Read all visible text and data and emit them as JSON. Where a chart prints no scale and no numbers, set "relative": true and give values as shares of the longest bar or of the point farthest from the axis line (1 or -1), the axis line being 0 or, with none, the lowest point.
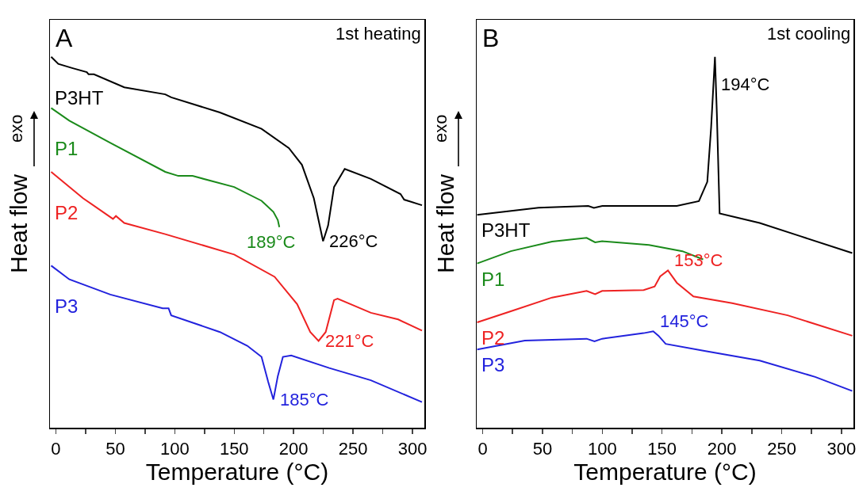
{
  "chart_data": [
    {
      "type": "line",
      "title": "A",
      "subtitle": "1st heating",
      "xlabel": "Temperature (°C)",
      "ylabel": "Heat flow",
      "relative": true,
      "xlim": [
        -5,
        310
      ],
      "xticks": [
        0,
        {
          "value": 25,
          "label": null
        },
        50,
        {
          "value": 75,
          "label": null
        },
        100,
        {
          "value": 125,
          "label": null
        },
        150,
        {
          "value": 175,
          "label": null
        },
        200,
        {
          "value": 225,
          "label": null
        },
        250,
        {
          "value": 275,
          "label": null
        },
        300
      ],
      "annotations": [
        "exo",
        {
          "text": "226°C",
          "x": 224.8,
          "y": 0.503
        },
        {
          "text": "189°C",
          "x": 188,
          "y": 0.541
        },
        {
          "text": "221°C",
          "x": 221,
          "y": 0.234
        },
        {
          "text": "185°C",
          "x": 183,
          "y": 0.076
        }
      ],
      "series": [
        {
          "name": "P3HT",
          "color": "#000000",
          "x": [
            -4,
            2,
            13.6,
            26,
            27.5,
            32,
            57.5,
            92,
            97,
            138,
            173,
            196,
            207,
            217,
            224.8,
            229,
            234,
            243,
            265,
            290,
            293,
            308
          ],
          "values": [
            1.0,
            0.981,
            0.97,
            0.959,
            0.953,
            0.953,
            0.918,
            0.899,
            0.891,
            0.85,
            0.806,
            0.754,
            0.709,
            0.619,
            0.503,
            0.545,
            0.649,
            0.698,
            0.671,
            0.63,
            0.615,
            0.6
          ]
        },
        {
          "name": "P1",
          "color": "#1a8a1a",
          "x": [
            -4,
            11.3,
            45.8,
            92,
            103,
            115,
            150,
            173,
            183,
            186.7,
            188
          ],
          "values": [
            0.862,
            0.828,
            0.768,
            0.69,
            0.679,
            0.679,
            0.649,
            0.612,
            0.582,
            0.56,
            0.541
          ]
        },
        {
          "name": "P2",
          "color": "#ee2222",
          "x": [
            -4,
            22.8,
            48,
            50.5,
            57.5,
            92,
            150,
            184,
            203,
            214,
            221,
            227,
            234,
            237,
            265,
            288,
            308
          ],
          "values": [
            0.69,
            0.619,
            0.563,
            0.571,
            0.552,
            0.522,
            0.467,
            0.407,
            0.333,
            0.258,
            0.234,
            0.258,
            0.344,
            0.348,
            0.31,
            0.292,
            0.262
          ]
        },
        {
          "name": "P3",
          "color": "#2222dd",
          "x": [
            -4,
            11.3,
            45.8,
            89.8,
            94.8,
            97,
            138,
            161,
            173,
            178.6,
            183,
            186.7,
            191,
            198,
            230,
            265,
            308
          ],
          "values": [
            0.437,
            0.4,
            0.359,
            0.322,
            0.322,
            0.303,
            0.258,
            0.221,
            0.191,
            0.124,
            0.076,
            0.139,
            0.191,
            0.195,
            0.161,
            0.128,
            0.069
          ]
        }
      ]
    },
    {
      "type": "line",
      "title": "B",
      "subtitle": "1st cooling",
      "xlabel": "Temperature (°C)",
      "ylabel": "Heat flow",
      "relative": true,
      "xlim": [
        -5,
        310
      ],
      "xticks": [
        0,
        {
          "value": 25,
          "label": null
        },
        50,
        {
          "value": 75,
          "label": null
        },
        100,
        {
          "value": 125,
          "label": null
        },
        150,
        {
          "value": 175,
          "label": null
        },
        200,
        {
          "value": 225,
          "label": null
        },
        250,
        {
          "value": 275,
          "label": null
        },
        300
      ],
      "annotations": [
        "exo",
        {
          "text": "194°C",
          "x": 194.2,
          "y": 1.0
        },
        {
          "text": "153°C",
          "x": 154.9,
          "y": 0.424
        },
        {
          "text": "145°C",
          "x": 142.6,
          "y": 0.26
        }
      ],
      "series": [
        {
          "name": "P3HT",
          "color": "#000000",
          "x": [
            -4.6,
            46.7,
            88.3,
            93,
            100,
            162.3,
            180.8,
            187.8,
            191,
            194.2,
            195.8,
            198.1,
            231.6,
            266,
            309
          ],
          "values": [
            0.574,
            0.593,
            0.598,
            0.593,
            0.598,
            0.598,
            0.611,
            0.663,
            0.81,
            1.0,
            0.847,
            0.578,
            0.552,
            0.516,
            0.471
          ]
        },
        {
          "name": "P1",
          "color": "#1a8a1a",
          "x": [
            -4.6,
            23.5,
            58,
            86.9,
            94,
            99.9,
            139,
            167,
            184.3
          ],
          "values": [
            0.443,
            0.476,
            0.502,
            0.512,
            0.5,
            0.503,
            0.493,
            0.476,
            0.454
          ]
        },
        {
          "name": "P2",
          "color": "#ee2222",
          "x": [
            -4.6,
            23.5,
            58,
            86.9,
            94,
            99.9,
            134.6,
            143.8,
            148.4,
            154.9,
            162.3,
            176.2,
            208.6,
            255,
            309
          ],
          "values": [
            0.284,
            0.314,
            0.351,
            0.369,
            0.36,
            0.369,
            0.371,
            0.381,
            0.408,
            0.424,
            0.391,
            0.354,
            0.336,
            0.303,
            0.248
          ]
        },
        {
          "name": "P3",
          "color": "#2222dd",
          "x": [
            -4.6,
            35.2,
            86.9,
            93.5,
            99.9,
            134.6,
            142.6,
            147,
            153,
            185.4,
            231.6,
            278,
            309
          ],
          "values": [
            0.211,
            0.235,
            0.24,
            0.233,
            0.24,
            0.255,
            0.26,
            0.248,
            0.226,
            0.207,
            0.181,
            0.137,
            0.099
          ]
        }
      ]
    }
  ]
}
